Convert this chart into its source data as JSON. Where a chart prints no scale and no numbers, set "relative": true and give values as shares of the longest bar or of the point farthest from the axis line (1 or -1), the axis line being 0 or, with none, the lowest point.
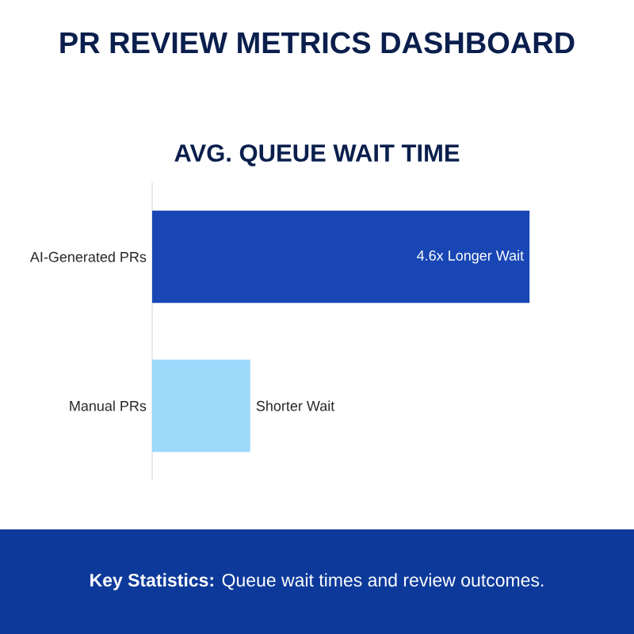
{
  "chart_data": {
    "type": "bar",
    "orientation": "horizontal",
    "relative": true,
    "title": "PR REVIEW METRICS DASHBOARD",
    "subtitle": "AVG. QUEUE WAIT TIME",
    "annotations": [
      "**Key Statistics:** Queue wait times and review outcomes.",
      {
        "text": "4.6x Longer Wait",
        "x": 1,
        "y": "AI-Generated PRs"
      },
      {
        "text": "Shorter Wait",
        "x": 0.26,
        "y": "Manual PRs"
      }
    ],
    "categories": [
      "AI-Generated PRs",
      "Manual PRs"
    ],
    "values": [
      1,
      0.26
    ],
    "colors": [
      "#1846b4",
      "#9dd9fb"
    ]
  }
}
